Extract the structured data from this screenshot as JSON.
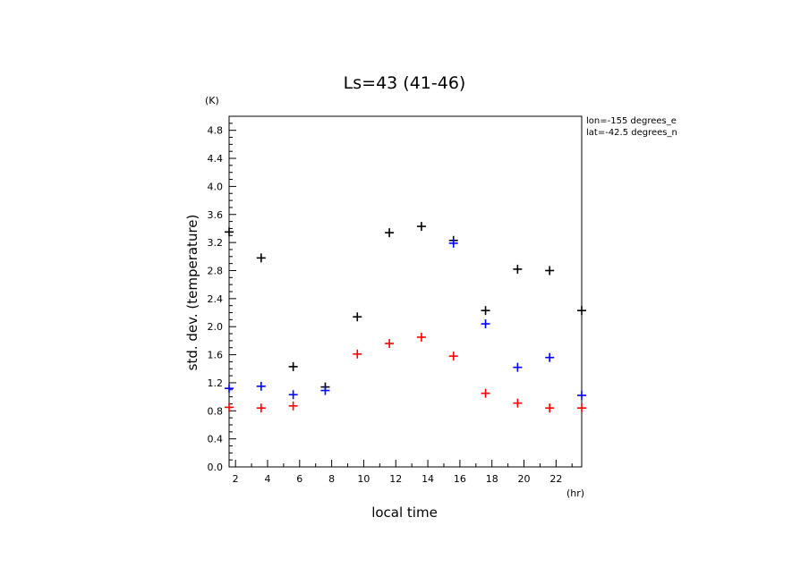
{
  "chart_data": {
    "type": "scatter",
    "title": "Ls=43 (41-46)",
    "xlabel": "local time",
    "ylabel": "std. dev. (temperature)",
    "x_unit": "(hr)",
    "y_unit": "(K)",
    "annotations": [
      "lon=-155 degrees_e",
      "lat=-42.5 degrees_n"
    ],
    "xlim": [
      1.6,
      23.6
    ],
    "ylim": [
      0,
      5.0
    ],
    "xticks": [
      2,
      4,
      6,
      8,
      10,
      12,
      14,
      16,
      18,
      20,
      22
    ],
    "yticks": [
      "0.0",
      "0.4",
      "0.8",
      "1.2",
      "1.6",
      "2.0",
      "2.4",
      "2.8",
      "3.2",
      "3.6",
      "4.0",
      "4.4",
      "4.8"
    ],
    "grid": false,
    "marker": "+",
    "series": [
      {
        "color": "#000000",
        "points": [
          [
            1.6,
            3.35
          ],
          [
            3.6,
            2.98
          ],
          [
            5.6,
            1.43
          ],
          [
            7.6,
            1.14
          ],
          [
            9.6,
            2.14
          ],
          [
            11.6,
            3.34
          ],
          [
            13.6,
            3.43
          ],
          [
            15.6,
            3.23
          ],
          [
            17.6,
            2.23
          ],
          [
            19.6,
            2.82
          ],
          [
            21.6,
            2.8
          ],
          [
            23.6,
            2.23
          ]
        ]
      },
      {
        "color": "#0000ff",
        "points": [
          [
            1.6,
            1.12
          ],
          [
            3.6,
            1.15
          ],
          [
            5.6,
            1.03
          ],
          [
            7.6,
            1.09
          ],
          [
            15.6,
            3.19
          ],
          [
            17.6,
            2.04
          ],
          [
            19.6,
            1.42
          ],
          [
            21.6,
            1.56
          ],
          [
            23.6,
            1.02
          ]
        ]
      },
      {
        "color": "#ff0000",
        "points": [
          [
            1.6,
            0.85
          ],
          [
            3.6,
            0.84
          ],
          [
            5.6,
            0.87
          ],
          [
            9.6,
            1.61
          ],
          [
            11.6,
            1.76
          ],
          [
            13.6,
            1.85
          ],
          [
            15.6,
            1.58
          ],
          [
            17.6,
            1.05
          ],
          [
            19.6,
            0.91
          ],
          [
            21.6,
            0.84
          ],
          [
            23.6,
            0.84
          ]
        ]
      }
    ]
  }
}
